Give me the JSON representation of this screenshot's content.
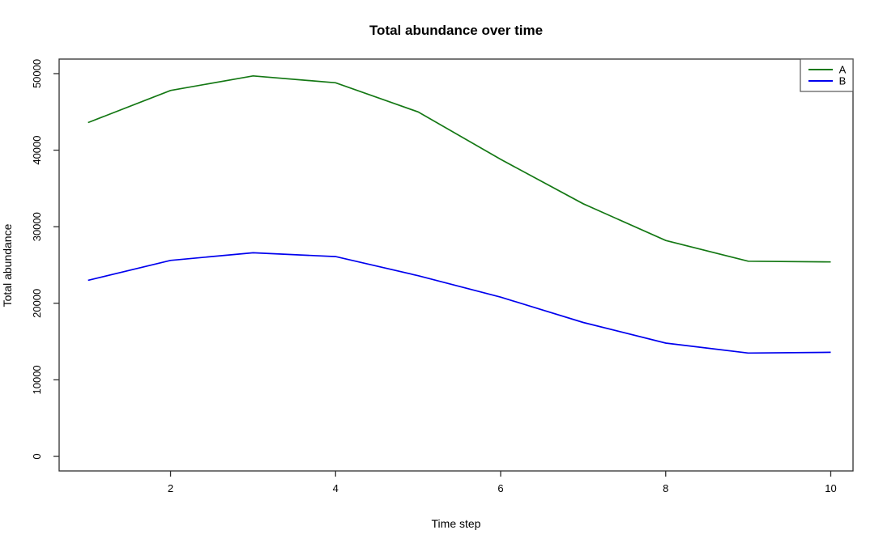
{
  "window": {
    "background": "#ffffff"
  },
  "chart_data": {
    "type": "line",
    "title": "Total abundance over time",
    "xlabel": "Time step",
    "ylabel": "Total abundance",
    "x": [
      1,
      2,
      3,
      4,
      5,
      6,
      7,
      8,
      9,
      10
    ],
    "series": [
      {
        "name": "A",
        "color": "#147814",
        "values": [
          43600,
          47800,
          49700,
          48800,
          45000,
          38800,
          33000,
          28200,
          25500,
          25400
        ]
      },
      {
        "name": "B",
        "color": "#0000EE",
        "values": [
          23000,
          25600,
          26600,
          26100,
          23600,
          20800,
          17500,
          14800,
          13500,
          13600
        ]
      }
    ],
    "xticks": [
      2,
      4,
      6,
      8,
      10
    ],
    "xtick_labels": [
      "2",
      "4",
      "6",
      "8",
      "10"
    ],
    "yticks": [
      0,
      10000,
      20000,
      30000,
      40000,
      50000
    ],
    "ytick_labels": [
      "0",
      "10000",
      "20000",
      "30000",
      "40000",
      "50000"
    ],
    "xlim": [
      0.65,
      10.27
    ],
    "ylim": [
      -1900,
      51900
    ],
    "grid": false,
    "legend": {
      "position": "topright",
      "entries": [
        "A",
        "B"
      ]
    },
    "axis_color": "#2e2e2e",
    "legend_border_color": "#555555"
  }
}
